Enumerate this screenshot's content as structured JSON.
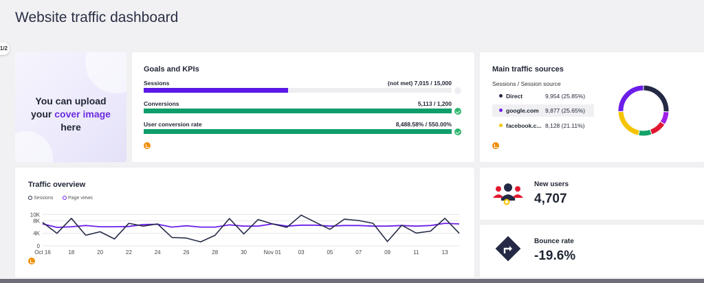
{
  "page": {
    "title": "Website traffic dashboard",
    "pager": "1/2"
  },
  "cover": {
    "line1": "You can upload",
    "line2_prefix": "your ",
    "line2_accent": "cover image",
    "line3": "here",
    "accent_color": "#6b2be0"
  },
  "goals": {
    "title": "Goals and KPIs",
    "kpis": [
      {
        "label": "Sessions",
        "value": "(not met) 7,015 / 15,000",
        "progress": 0.468,
        "color": "#5b18e6",
        "status": "pending"
      },
      {
        "label": "Conversions",
        "value": "5,113 / 1,200",
        "progress": 1.0,
        "color": "#0f9d6b",
        "status": "met"
      },
      {
        "label": "User conversion rate",
        "value": "8,488.58% / 550.00%",
        "progress": 1.0,
        "color": "#0f9d6b",
        "status": "met"
      }
    ],
    "source_icon": "google-analytics-icon"
  },
  "traffic_sources": {
    "title": "Main traffic sources",
    "subtitle": "Sessions / Session source",
    "sources": [
      {
        "name": "Direct",
        "value": "9,954 (25.85%)",
        "color": "#242a45",
        "share": 25.85
      },
      {
        "name": "google.com",
        "value": "9,877 (25.65%)",
        "color": "#6b1ee8",
        "share": 25.65,
        "highlighted": true
      },
      {
        "name": "facebook.c...",
        "value": "8,128 (21.11%)",
        "color": "#f5c400",
        "share": 21.11
      }
    ],
    "other_segments": [
      {
        "color": "#16a36a",
        "share": 8.5
      },
      {
        "color": "#e01830",
        "share": 10.5
      },
      {
        "color": "#a020e8",
        "share": 8.39
      }
    ]
  },
  "overview": {
    "title": "Traffic overview",
    "legend": [
      {
        "name": "Sessions",
        "color": "#242a45"
      },
      {
        "name": "Page views",
        "color": "#6b1ee8"
      }
    ]
  },
  "chart_data": {
    "type": "line",
    "title": "Traffic overview",
    "y_ticks": [
      "10K",
      "8K",
      "4K",
      "0"
    ],
    "y_tick_values": [
      10000,
      8000,
      4000,
      0
    ],
    "ylim": [
      0,
      10500
    ],
    "x_tick_labels": [
      "Oct 16",
      "18",
      "20",
      "22",
      "24",
      "26",
      "28",
      "30",
      "Nov 01",
      "03",
      "05",
      "07",
      "09",
      "11",
      "13"
    ],
    "x": [
      "Oct 16",
      "Oct 17",
      "Oct 18",
      "Oct 19",
      "Oct 20",
      "Oct 21",
      "Oct 22",
      "Oct 23",
      "Oct 24",
      "Oct 25",
      "Oct 26",
      "Oct 27",
      "Oct 28",
      "Oct 29",
      "Oct 30",
      "Oct 31",
      "Nov 01",
      "Nov 02",
      "Nov 03",
      "Nov 04",
      "Nov 05",
      "Nov 06",
      "Nov 07",
      "Nov 08",
      "Nov 09",
      "Nov 10",
      "Nov 11",
      "Nov 12",
      "Nov 13",
      "Nov 14"
    ],
    "series": [
      {
        "name": "Sessions",
        "color": "#242a45",
        "values": [
          7500,
          4000,
          8800,
          3400,
          4500,
          2200,
          7200,
          6300,
          7000,
          2700,
          2500,
          1300,
          3400,
          8700,
          3800,
          8400,
          7000,
          5900,
          9800,
          7500,
          5300,
          8500,
          8100,
          7200,
          1400,
          6600,
          4100,
          4700,
          8800,
          4000
        ]
      },
      {
        "name": "Page views",
        "color": "#6b1ee8",
        "values": [
          7000,
          5900,
          6100,
          6500,
          6100,
          6100,
          6200,
          6800,
          6900,
          6000,
          6400,
          6000,
          6000,
          6700,
          6300,
          6300,
          7000,
          6300,
          6600,
          6600,
          6300,
          6500,
          6500,
          6300,
          6300,
          6500,
          6300,
          6500,
          7200,
          7000
        ]
      }
    ]
  },
  "metrics": [
    {
      "label": "New users",
      "value": "4,707",
      "icon": "users-icon"
    },
    {
      "label": "Bounce rate",
      "value": "-19.6%",
      "icon": "bounce-arrow-icon"
    }
  ]
}
